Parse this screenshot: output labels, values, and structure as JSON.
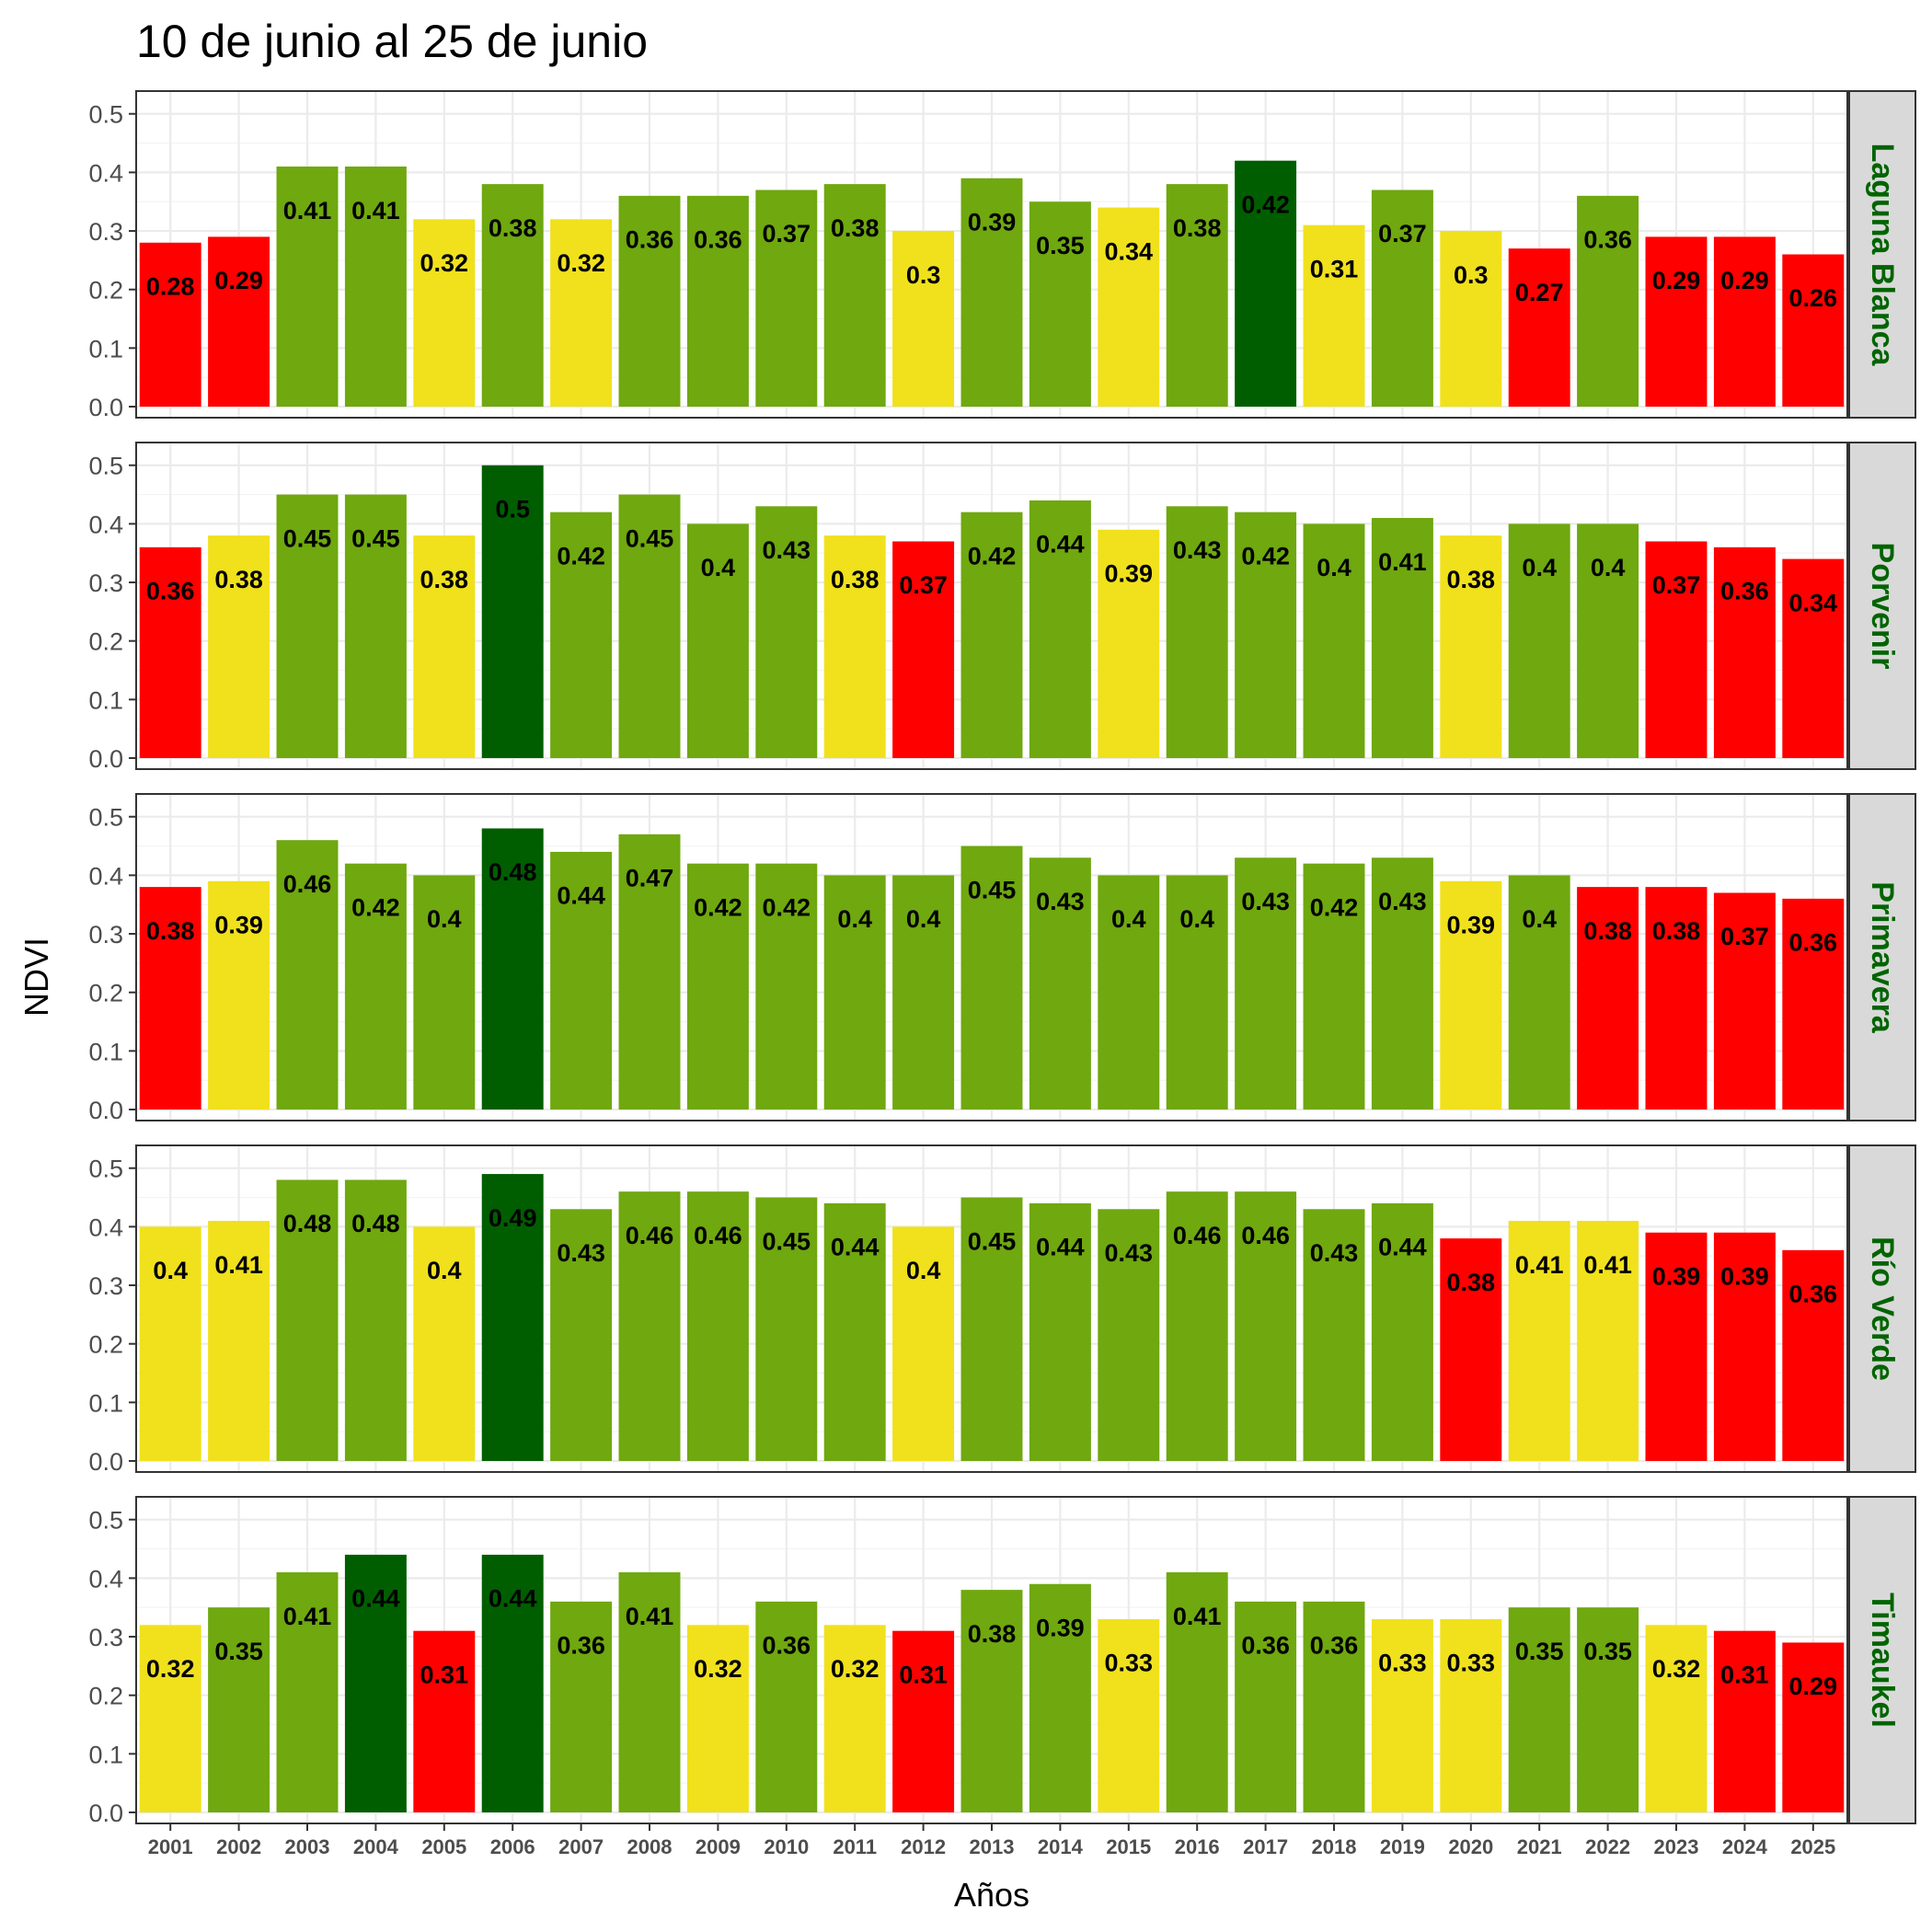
{
  "chart_data": {
    "type": "bar",
    "title": "10 de junio al 25 de junio",
    "xlabel": "Años",
    "ylabel": "NDVI",
    "ylim": [
      0,
      0.52
    ],
    "yticks": [
      "0.0",
      "0.1",
      "0.2",
      "0.3",
      "0.4",
      "0.5"
    ],
    "grid": true,
    "categories": [
      "2001",
      "2002",
      "2003",
      "2004",
      "2005",
      "2006",
      "2007",
      "2008",
      "2009",
      "2010",
      "2011",
      "2012",
      "2013",
      "2014",
      "2015",
      "2016",
      "2017",
      "2018",
      "2019",
      "2020",
      "2021",
      "2022",
      "2023",
      "2024",
      "2025"
    ],
    "colors": {
      "red": "#ff0000",
      "yellow": "#f0e11c",
      "green": "#6fa80f",
      "dark_green": "#005e00"
    },
    "panels": [
      {
        "name": "Laguna Blanca",
        "values": [
          0.28,
          0.29,
          0.41,
          0.41,
          0.32,
          0.38,
          0.32,
          0.36,
          0.36,
          0.37,
          0.38,
          0.3,
          0.39,
          0.35,
          0.34,
          0.38,
          0.42,
          0.31,
          0.37,
          0.3,
          0.27,
          0.36,
          0.29,
          0.29,
          0.26
        ],
        "labels": [
          "0.28",
          "0.29",
          "0.41",
          "0.41",
          "0.32",
          "0.38",
          "0.32",
          "0.36",
          "0.36",
          "0.37",
          "0.38",
          "0.3",
          "0.39",
          "0.35",
          "0.34",
          "0.38",
          "0.42",
          "0.31",
          "0.37",
          "0.3",
          "0.27",
          "0.36",
          "0.29",
          "0.29",
          "0.26"
        ],
        "classes": [
          "red",
          "red",
          "green",
          "green",
          "yellow",
          "green",
          "yellow",
          "green",
          "green",
          "green",
          "green",
          "yellow",
          "green",
          "green",
          "yellow",
          "green",
          "dark_green",
          "yellow",
          "green",
          "yellow",
          "red",
          "green",
          "red",
          "red",
          "red"
        ]
      },
      {
        "name": "Porvenir",
        "values": [
          0.36,
          0.38,
          0.45,
          0.45,
          0.38,
          0.5,
          0.42,
          0.45,
          0.4,
          0.43,
          0.38,
          0.37,
          0.42,
          0.44,
          0.39,
          0.43,
          0.42,
          0.4,
          0.41,
          0.38,
          0.4,
          0.4,
          0.37,
          0.36,
          0.34
        ],
        "labels": [
          "0.36",
          "0.38",
          "0.45",
          "0.45",
          "0.38",
          "0.5",
          "0.42",
          "0.45",
          "0.4",
          "0.43",
          "0.38",
          "0.37",
          "0.42",
          "0.44",
          "0.39",
          "0.43",
          "0.42",
          "0.4",
          "0.41",
          "0.38",
          "0.4",
          "0.4",
          "0.37",
          "0.36",
          "0.34"
        ],
        "classes": [
          "red",
          "yellow",
          "green",
          "green",
          "yellow",
          "dark_green",
          "green",
          "green",
          "green",
          "green",
          "yellow",
          "red",
          "green",
          "green",
          "yellow",
          "green",
          "green",
          "green",
          "green",
          "yellow",
          "green",
          "green",
          "red",
          "red",
          "red"
        ]
      },
      {
        "name": "Primavera",
        "values": [
          0.38,
          0.39,
          0.46,
          0.42,
          0.4,
          0.48,
          0.44,
          0.47,
          0.42,
          0.42,
          0.4,
          0.4,
          0.45,
          0.43,
          0.4,
          0.4,
          0.43,
          0.42,
          0.43,
          0.39,
          0.4,
          0.38,
          0.38,
          0.37,
          0.36
        ],
        "labels": [
          "0.38",
          "0.39",
          "0.46",
          "0.42",
          "0.4",
          "0.48",
          "0.44",
          "0.47",
          "0.42",
          "0.42",
          "0.4",
          "0.4",
          "0.45",
          "0.43",
          "0.4",
          "0.4",
          "0.43",
          "0.42",
          "0.43",
          "0.39",
          "0.4",
          "0.38",
          "0.38",
          "0.37",
          "0.36"
        ],
        "classes": [
          "red",
          "yellow",
          "green",
          "green",
          "green",
          "dark_green",
          "green",
          "green",
          "green",
          "green",
          "green",
          "green",
          "green",
          "green",
          "green",
          "green",
          "green",
          "green",
          "green",
          "yellow",
          "green",
          "red",
          "red",
          "red",
          "red"
        ]
      },
      {
        "name": "Río Verde",
        "values": [
          0.4,
          0.41,
          0.48,
          0.48,
          0.4,
          0.49,
          0.43,
          0.46,
          0.46,
          0.45,
          0.44,
          0.4,
          0.45,
          0.44,
          0.43,
          0.46,
          0.46,
          0.43,
          0.44,
          0.38,
          0.41,
          0.41,
          0.39,
          0.39,
          0.36
        ],
        "labels": [
          "0.4",
          "0.41",
          "0.48",
          "0.48",
          "0.4",
          "0.49",
          "0.43",
          "0.46",
          "0.46",
          "0.45",
          "0.44",
          "0.4",
          "0.45",
          "0.44",
          "0.43",
          "0.46",
          "0.46",
          "0.43",
          "0.44",
          "0.38",
          "0.41",
          "0.41",
          "0.39",
          "0.39",
          "0.36"
        ],
        "classes": [
          "yellow",
          "yellow",
          "green",
          "green",
          "yellow",
          "dark_green",
          "green",
          "green",
          "green",
          "green",
          "green",
          "yellow",
          "green",
          "green",
          "green",
          "green",
          "green",
          "green",
          "green",
          "red",
          "yellow",
          "yellow",
          "red",
          "red",
          "red"
        ]
      },
      {
        "name": "Timaukel",
        "values": [
          0.32,
          0.35,
          0.41,
          0.44,
          0.31,
          0.44,
          0.36,
          0.41,
          0.32,
          0.36,
          0.32,
          0.31,
          0.38,
          0.39,
          0.33,
          0.41,
          0.36,
          0.36,
          0.33,
          0.33,
          0.35,
          0.35,
          0.32,
          0.31,
          0.29
        ],
        "labels": [
          "0.32",
          "0.35",
          "0.41",
          "0.44",
          "0.31",
          "0.44",
          "0.36",
          "0.41",
          "0.32",
          "0.36",
          "0.32",
          "0.31",
          "0.38",
          "0.39",
          "0.33",
          "0.41",
          "0.36",
          "0.36",
          "0.33",
          "0.33",
          "0.35",
          "0.35",
          "0.32",
          "0.31",
          "0.29"
        ],
        "classes": [
          "yellow",
          "green",
          "green",
          "dark_green",
          "red",
          "dark_green",
          "green",
          "green",
          "yellow",
          "green",
          "yellow",
          "red",
          "green",
          "green",
          "yellow",
          "green",
          "green",
          "green",
          "yellow",
          "yellow",
          "green",
          "green",
          "yellow",
          "red",
          "red"
        ]
      }
    ]
  }
}
